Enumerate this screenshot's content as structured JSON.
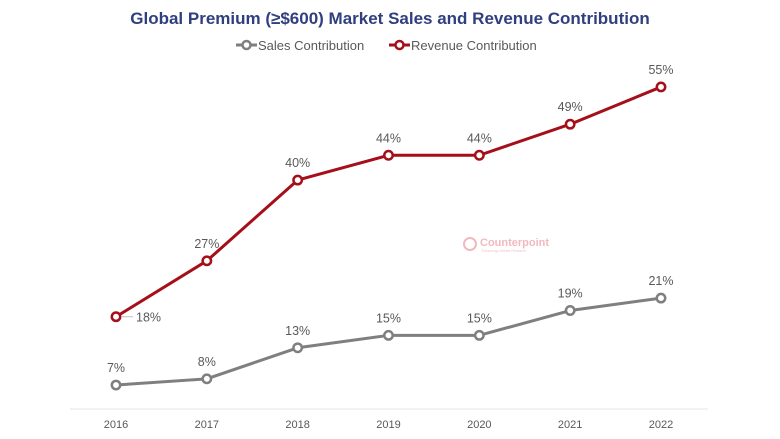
{
  "chart_data": {
    "type": "line",
    "title": "Global Premium (≥$600) Market Sales and Revenue Contribution",
    "xlabel": "",
    "ylabel": "",
    "categories": [
      "2016",
      "2017",
      "2018",
      "2019",
      "2020",
      "2021",
      "2022"
    ],
    "series": [
      {
        "name": "Sales Contribution",
        "color": "#7f7f7f",
        "values": [
          7,
          8,
          13,
          15,
          15,
          19,
          21
        ],
        "labels": [
          "7%",
          "8%",
          "13%",
          "15%",
          "15%",
          "19%",
          "21%"
        ]
      },
      {
        "name": "Revenue Contribution",
        "color": "#a50f1a",
        "values": [
          18,
          27,
          40,
          44,
          44,
          49,
          55
        ],
        "labels": [
          "18%",
          "27%",
          "40%",
          "44%",
          "44%",
          "49%",
          "55%"
        ]
      }
    ],
    "ylim": [
      0,
      60
    ],
    "grid": false,
    "legend_position": "top-center",
    "watermark": {
      "name": "Counterpoint",
      "subtitle": "Technology Market Research",
      "color": "#f2b8bf"
    }
  }
}
